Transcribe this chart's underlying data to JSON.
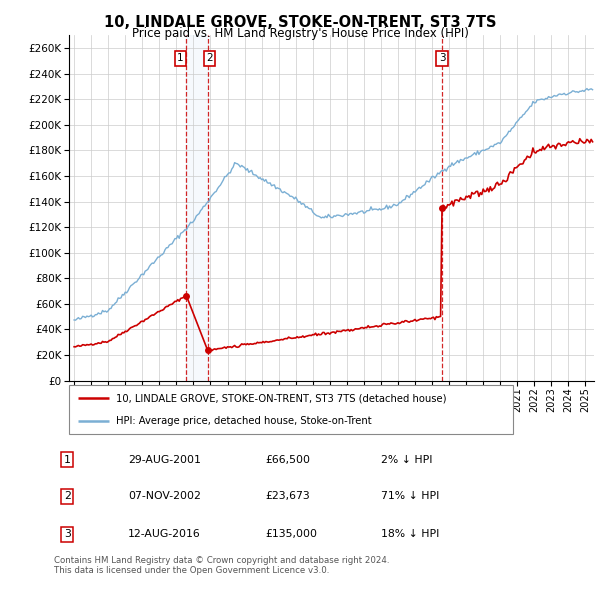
{
  "title": "10, LINDALE GROVE, STOKE-ON-TRENT, ST3 7TS",
  "subtitle": "Price paid vs. HM Land Registry's House Price Index (HPI)",
  "ylim": [
    0,
    270000
  ],
  "yticks": [
    0,
    20000,
    40000,
    60000,
    80000,
    100000,
    120000,
    140000,
    160000,
    180000,
    200000,
    220000,
    240000,
    260000
  ],
  "sale_color": "#cc0000",
  "hpi_color": "#7bafd4",
  "transactions": [
    {
      "date": "2001-08-29",
      "price": 66500,
      "label": "1"
    },
    {
      "date": "2002-11-07",
      "price": 23673,
      "label": "2"
    },
    {
      "date": "2016-08-12",
      "price": 135000,
      "label": "3"
    }
  ],
  "transaction_details": [
    {
      "label": "1",
      "date_str": "29-AUG-2001",
      "price_str": "£66,500",
      "pct_str": "2% ↓ HPI"
    },
    {
      "label": "2",
      "date_str": "07-NOV-2002",
      "price_str": "£23,673",
      "pct_str": "71% ↓ HPI"
    },
    {
      "label": "3",
      "date_str": "12-AUG-2016",
      "price_str": "£135,000",
      "pct_str": "18% ↓ HPI"
    }
  ],
  "legend_line1": "10, LINDALE GROVE, STOKE-ON-TRENT, ST3 7TS (detached house)",
  "legend_line2": "HPI: Average price, detached house, Stoke-on-Trent",
  "footer1": "Contains HM Land Registry data © Crown copyright and database right 2024.",
  "footer2": "This data is licensed under the Open Government Licence v3.0.",
  "background_color": "#ffffff",
  "grid_color": "#cccccc",
  "xlim_left": 1994.7,
  "xlim_right": 2025.5,
  "xtick_start": 1995,
  "xtick_end": 2025
}
